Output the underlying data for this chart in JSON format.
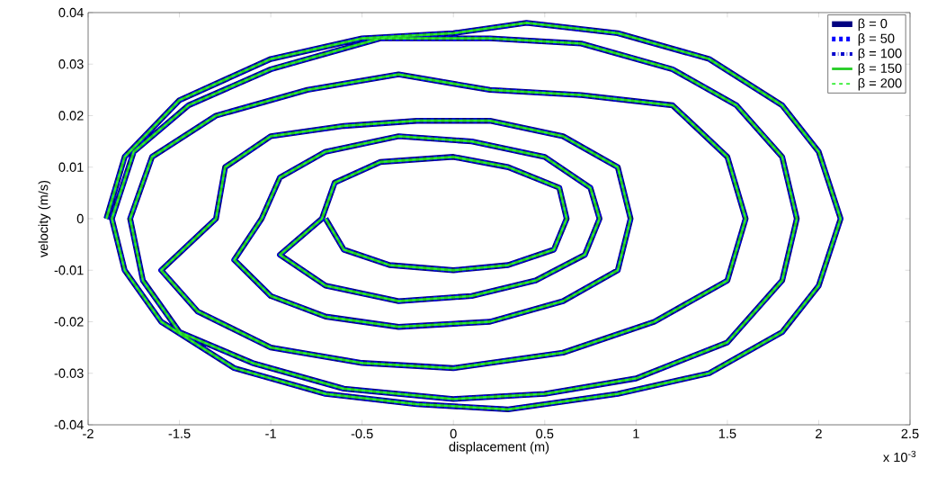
{
  "chart_data": {
    "type": "line",
    "xlabel": "displacement (m)",
    "ylabel": "velocity (m/s)",
    "annotations": [
      "x 10$^{-3}$"
    ],
    "xlim": [
      -2,
      2.5
    ],
    "xticks": [
      -2,
      -1.5,
      -1,
      -0.5,
      0,
      0.5,
      1,
      1.5,
      2,
      2.5
    ],
    "ylim": [
      -0.04,
      0.04
    ],
    "yticks": [
      -0.04,
      -0.03,
      -0.02,
      -0.01,
      0,
      0.01,
      0.02,
      0.03,
      0.04
    ],
    "legend": "top right",
    "grid": false,
    "marker": "none",
    "series": [
      {
        "name": "β = 0",
        "color": "#000080",
        "line_style": "solid",
        "x": [
          -1.9,
          -1.8,
          -1.5,
          -1.0,
          -0.5,
          0,
          0.4,
          0.9,
          1.4,
          1.8,
          2.0,
          2.12,
          2.0,
          1.8,
          1.4,
          0.9,
          0.3,
          -0.2,
          -0.7,
          -1.2,
          -1.6,
          -1.8,
          -1.87,
          -1.75,
          -1.45,
          -1.0,
          -0.4,
          0.2,
          0.7,
          1.2,
          1.55,
          1.8,
          1.88,
          1.8,
          1.5,
          1.0,
          0.5,
          0,
          -0.6,
          -1.1,
          -1.5,
          -1.7,
          -1.77,
          -1.65,
          -1.3,
          -0.8,
          -0.3,
          0.2,
          0.7,
          1.2,
          1.5,
          1.6,
          1.5,
          1.1,
          0.6,
          0,
          -0.5,
          -1.0,
          -1.4,
          -1.6,
          -1.3,
          -1.25,
          -1.0,
          -0.6,
          -0.2,
          0.2,
          0.6,
          0.9,
          0.97,
          0.9,
          0.6,
          0.2,
          -0.3,
          -0.7,
          -1.0,
          -1.2,
          -1.05,
          -0.95,
          -0.7,
          -0.3,
          0.1,
          0.5,
          0.75,
          0.8,
          0.72,
          0.45,
          0.1,
          -0.3,
          -0.7,
          -0.95,
          -0.72,
          -0.65,
          -0.4,
          0,
          0.3,
          0.58,
          0.62,
          0.55,
          0.3,
          0,
          -0.35,
          -0.6,
          -0.7
        ],
        "values": [
          0,
          0.012,
          0.023,
          0.031,
          0.035,
          0.036,
          0.038,
          0.036,
          0.031,
          0.022,
          0.013,
          0,
          -0.013,
          -0.022,
          -0.03,
          -0.034,
          -0.037,
          -0.036,
          -0.034,
          -0.029,
          -0.02,
          -0.01,
          0,
          0.013,
          0.022,
          0.029,
          0.035,
          0.035,
          0.034,
          0.029,
          0.022,
          0.012,
          0,
          -0.012,
          -0.024,
          -0.031,
          -0.034,
          -0.035,
          -0.033,
          -0.028,
          -0.022,
          -0.012,
          0,
          0.012,
          0.02,
          0.025,
          0.028,
          0.025,
          0.024,
          0.022,
          0.012,
          0,
          -0.012,
          -0.02,
          -0.026,
          -0.029,
          -0.028,
          -0.025,
          -0.018,
          -0.01,
          0,
          0.01,
          0.016,
          0.018,
          0.019,
          0.019,
          0.016,
          0.01,
          0,
          -0.01,
          -0.016,
          -0.02,
          -0.021,
          -0.019,
          -0.015,
          -0.008,
          0,
          0.008,
          0.013,
          0.016,
          0.015,
          0.012,
          0.006,
          0,
          -0.007,
          -0.012,
          -0.015,
          -0.016,
          -0.013,
          -0.007,
          0,
          0.007,
          0.011,
          0.012,
          0.01,
          0.006,
          0,
          -0.006,
          -0.009,
          -0.01,
          -0.009,
          -0.006,
          0
        ]
      },
      {
        "name": "β = 50",
        "color": "#0000ff",
        "line_style": "dashed",
        "x": [
          -1.9,
          -1.8,
          -1.5,
          -1.0,
          -0.5,
          0,
          0.4,
          0.9,
          1.4,
          1.8,
          2.0,
          2.12,
          2.0,
          1.8,
          1.4,
          0.9,
          0.3,
          -0.2,
          -0.7,
          -1.2,
          -1.6,
          -1.8,
          -1.87,
          -1.75,
          -1.45,
          -1.0,
          -0.4,
          0.2,
          0.7,
          1.2,
          1.55,
          1.8,
          1.88,
          1.8,
          1.5,
          1.0,
          0.5,
          0,
          -0.6,
          -1.1,
          -1.5,
          -1.7,
          -1.77,
          -1.65,
          -1.3,
          -0.8,
          -0.3,
          0.2,
          0.7,
          1.2,
          1.5,
          1.6,
          1.5,
          1.1,
          0.6,
          0,
          -0.5,
          -1.0,
          -1.4,
          -1.6,
          -1.3,
          -1.25,
          -1.0,
          -0.6,
          -0.2,
          0.2,
          0.6,
          0.9,
          0.97,
          0.9,
          0.6,
          0.2,
          -0.3,
          -0.7,
          -1.0,
          -1.2,
          -1.05,
          -0.95,
          -0.7,
          -0.3,
          0.1,
          0.5,
          0.75,
          0.8,
          0.72,
          0.45,
          0.1,
          -0.3,
          -0.7,
          -0.95,
          -0.72,
          -0.65,
          -0.4,
          0,
          0.3,
          0.58,
          0.62,
          0.55,
          0.3,
          0,
          -0.35,
          -0.6,
          -0.7
        ],
        "values": [
          0,
          0.012,
          0.023,
          0.031,
          0.035,
          0.036,
          0.038,
          0.036,
          0.031,
          0.022,
          0.013,
          0,
          -0.013,
          -0.022,
          -0.03,
          -0.034,
          -0.037,
          -0.036,
          -0.034,
          -0.029,
          -0.02,
          -0.01,
          0,
          0.013,
          0.022,
          0.029,
          0.035,
          0.035,
          0.034,
          0.029,
          0.022,
          0.012,
          0,
          -0.012,
          -0.024,
          -0.031,
          -0.034,
          -0.035,
          -0.033,
          -0.028,
          -0.022,
          -0.012,
          0,
          0.012,
          0.02,
          0.025,
          0.028,
          0.025,
          0.024,
          0.022,
          0.012,
          0,
          -0.012,
          -0.02,
          -0.026,
          -0.029,
          -0.028,
          -0.025,
          -0.018,
          -0.01,
          0,
          0.01,
          0.016,
          0.018,
          0.019,
          0.019,
          0.016,
          0.01,
          0,
          -0.01,
          -0.016,
          -0.02,
          -0.021,
          -0.019,
          -0.015,
          -0.008,
          0,
          0.008,
          0.013,
          0.016,
          0.015,
          0.012,
          0.006,
          0,
          -0.007,
          -0.012,
          -0.015,
          -0.016,
          -0.013,
          -0.007,
          0,
          0.007,
          0.011,
          0.012,
          0.01,
          0.006,
          0,
          -0.006,
          -0.009,
          -0.01,
          -0.009,
          -0.006,
          0
        ]
      },
      {
        "name": "β = 100",
        "color": "#0000cc",
        "line_style": "dashdot",
        "x": [
          -1.9,
          -1.8,
          -1.5,
          -1.0,
          -0.5,
          0,
          0.4,
          0.9,
          1.4,
          1.8,
          2.0,
          2.12,
          2.0,
          1.8,
          1.4,
          0.9,
          0.3,
          -0.2,
          -0.7,
          -1.2,
          -1.6,
          -1.8,
          -1.87,
          -1.75,
          -1.45,
          -1.0,
          -0.4,
          0.2,
          0.7,
          1.2,
          1.55,
          1.8,
          1.88,
          1.8,
          1.5,
          1.0,
          0.5,
          0,
          -0.6,
          -1.1,
          -1.5,
          -1.7,
          -1.77,
          -1.65,
          -1.3,
          -0.8,
          -0.3,
          0.2,
          0.7,
          1.2,
          1.5,
          1.6,
          1.5,
          1.1,
          0.6,
          0,
          -0.5,
          -1.0,
          -1.4,
          -1.6,
          -1.3,
          -1.25,
          -1.0,
          -0.6,
          -0.2,
          0.2,
          0.6,
          0.9,
          0.97,
          0.9,
          0.6,
          0.2,
          -0.3,
          -0.7,
          -1.0,
          -1.2,
          -1.05,
          -0.95,
          -0.7,
          -0.3,
          0.1,
          0.5,
          0.75,
          0.8,
          0.72,
          0.45,
          0.1,
          -0.3,
          -0.7,
          -0.95,
          -0.72,
          -0.65,
          -0.4,
          0,
          0.3,
          0.58,
          0.62,
          0.55,
          0.3,
          0,
          -0.35,
          -0.6,
          -0.7
        ],
        "values": [
          0,
          0.012,
          0.023,
          0.031,
          0.035,
          0.036,
          0.038,
          0.036,
          0.031,
          0.022,
          0.013,
          0,
          -0.013,
          -0.022,
          -0.03,
          -0.034,
          -0.037,
          -0.036,
          -0.034,
          -0.029,
          -0.02,
          -0.01,
          0,
          0.013,
          0.022,
          0.029,
          0.035,
          0.035,
          0.034,
          0.029,
          0.022,
          0.012,
          0,
          -0.012,
          -0.024,
          -0.031,
          -0.034,
          -0.035,
          -0.033,
          -0.028,
          -0.022,
          -0.012,
          0,
          0.012,
          0.02,
          0.025,
          0.028,
          0.025,
          0.024,
          0.022,
          0.012,
          0,
          -0.012,
          -0.02,
          -0.026,
          -0.029,
          -0.028,
          -0.025,
          -0.018,
          -0.01,
          0,
          0.01,
          0.016,
          0.018,
          0.019,
          0.019,
          0.016,
          0.01,
          0,
          -0.01,
          -0.016,
          -0.02,
          -0.021,
          -0.019,
          -0.015,
          -0.008,
          0,
          0.008,
          0.013,
          0.016,
          0.015,
          0.012,
          0.006,
          0,
          -0.007,
          -0.012,
          -0.015,
          -0.016,
          -0.013,
          -0.007,
          0,
          0.007,
          0.011,
          0.012,
          0.01,
          0.006,
          0,
          -0.006,
          -0.009,
          -0.01,
          -0.009,
          -0.006,
          0
        ]
      },
      {
        "name": "β = 150",
        "color": "#22cc22",
        "line_style": "solid",
        "x": [
          -1.9,
          -1.8,
          -1.5,
          -1.0,
          -0.5,
          0,
          0.4,
          0.9,
          1.4,
          1.8,
          2.0,
          2.12,
          2.0,
          1.8,
          1.4,
          0.9,
          0.3,
          -0.2,
          -0.7,
          -1.2,
          -1.6,
          -1.8,
          -1.87,
          -1.75,
          -1.45,
          -1.0,
          -0.4,
          0.2,
          0.7,
          1.2,
          1.55,
          1.8,
          1.88,
          1.8,
          1.5,
          1.0,
          0.5,
          0,
          -0.6,
          -1.1,
          -1.5,
          -1.7,
          -1.77,
          -1.65,
          -1.3,
          -0.8,
          -0.3,
          0.2,
          0.7,
          1.2,
          1.5,
          1.6,
          1.5,
          1.1,
          0.6,
          0,
          -0.5,
          -1.0,
          -1.4,
          -1.6,
          -1.3,
          -1.25,
          -1.0,
          -0.6,
          -0.2,
          0.2,
          0.6,
          0.9,
          0.97,
          0.9,
          0.6,
          0.2,
          -0.3,
          -0.7,
          -1.0,
          -1.2,
          -1.05,
          -0.95,
          -0.7,
          -0.3,
          0.1,
          0.5,
          0.75,
          0.8,
          0.72,
          0.45,
          0.1,
          -0.3,
          -0.7,
          -0.95,
          -0.72,
          -0.65,
          -0.4,
          0,
          0.3,
          0.58,
          0.62,
          0.55,
          0.3,
          0,
          -0.35,
          -0.6,
          -0.7
        ],
        "values": [
          0,
          0.012,
          0.023,
          0.031,
          0.035,
          0.036,
          0.038,
          0.036,
          0.031,
          0.022,
          0.013,
          0,
          -0.013,
          -0.022,
          -0.03,
          -0.034,
          -0.037,
          -0.036,
          -0.034,
          -0.029,
          -0.02,
          -0.01,
          0,
          0.013,
          0.022,
          0.029,
          0.035,
          0.035,
          0.034,
          0.029,
          0.022,
          0.012,
          0,
          -0.012,
          -0.024,
          -0.031,
          -0.034,
          -0.035,
          -0.033,
          -0.028,
          -0.022,
          -0.012,
          0,
          0.012,
          0.02,
          0.025,
          0.028,
          0.025,
          0.024,
          0.022,
          0.012,
          0,
          -0.012,
          -0.02,
          -0.026,
          -0.029,
          -0.028,
          -0.025,
          -0.018,
          -0.01,
          0,
          0.01,
          0.016,
          0.018,
          0.019,
          0.019,
          0.016,
          0.01,
          0,
          -0.01,
          -0.016,
          -0.02,
          -0.021,
          -0.019,
          -0.015,
          -0.008,
          0,
          0.008,
          0.013,
          0.016,
          0.015,
          0.012,
          0.006,
          0,
          -0.007,
          -0.012,
          -0.015,
          -0.016,
          -0.013,
          -0.007,
          0,
          0.007,
          0.011,
          0.012,
          0.01,
          0.006,
          0,
          -0.006,
          -0.009,
          -0.01,
          -0.009,
          -0.006,
          0
        ]
      },
      {
        "name": "β = 200",
        "color": "#33ee33",
        "line_style": "dashed",
        "x": [
          -1.9,
          -1.8,
          -1.5,
          -1.0,
          -0.5,
          0,
          0.4,
          0.9,
          1.4,
          1.8,
          2.0,
          2.12,
          2.0,
          1.8,
          1.4,
          0.9,
          0.3,
          -0.2,
          -0.7,
          -1.2,
          -1.6,
          -1.8,
          -1.87,
          -1.75,
          -1.45,
          -1.0,
          -0.4,
          0.2,
          0.7,
          1.2,
          1.55,
          1.8,
          1.88,
          1.8,
          1.5,
          1.0,
          0.5,
          0,
          -0.6,
          -1.1,
          -1.5,
          -1.7,
          -1.77,
          -1.65,
          -1.3,
          -0.8,
          -0.3,
          0.2,
          0.7,
          1.2,
          1.5,
          1.6,
          1.5,
          1.1,
          0.6,
          0,
          -0.5,
          -1.0,
          -1.4,
          -1.6,
          -1.3,
          -1.25,
          -1.0,
          -0.6,
          -0.2,
          0.2,
          0.6,
          0.9,
          0.97,
          0.9,
          0.6,
          0.2,
          -0.3,
          -0.7,
          -1.0,
          -1.2,
          -1.05,
          -0.95,
          -0.7,
          -0.3,
          0.1,
          0.5,
          0.75,
          0.8,
          0.72,
          0.45,
          0.1,
          -0.3,
          -0.7,
          -0.95,
          -0.72,
          -0.65,
          -0.4,
          0,
          0.3,
          0.58,
          0.62,
          0.55,
          0.3,
          0,
          -0.35,
          -0.6,
          -0.7
        ],
        "values": [
          0,
          0.012,
          0.023,
          0.031,
          0.035,
          0.036,
          0.038,
          0.036,
          0.031,
          0.022,
          0.013,
          0,
          -0.013,
          -0.022,
          -0.03,
          -0.034,
          -0.037,
          -0.036,
          -0.034,
          -0.029,
          -0.02,
          -0.01,
          0,
          0.013,
          0.022,
          0.029,
          0.035,
          0.035,
          0.034,
          0.029,
          0.022,
          0.012,
          0,
          -0.012,
          -0.024,
          -0.031,
          -0.034,
          -0.035,
          -0.033,
          -0.028,
          -0.022,
          -0.012,
          0,
          0.012,
          0.02,
          0.025,
          0.028,
          0.025,
          0.024,
          0.022,
          0.012,
          0,
          -0.012,
          -0.02,
          -0.026,
          -0.029,
          -0.028,
          -0.025,
          -0.018,
          -0.01,
          0,
          0.01,
          0.016,
          0.018,
          0.019,
          0.019,
          0.016,
          0.01,
          0,
          -0.01,
          -0.016,
          -0.02,
          -0.021,
          -0.019,
          -0.015,
          -0.008,
          0,
          0.008,
          0.013,
          0.016,
          0.015,
          0.012,
          0.006,
          0,
          -0.007,
          -0.012,
          -0.015,
          -0.016,
          -0.013,
          -0.007,
          0,
          0.007,
          0.011,
          0.012,
          0.01,
          0.006,
          0,
          -0.006,
          -0.009,
          -0.01,
          -0.009,
          -0.006,
          0
        ]
      }
    ]
  }
}
